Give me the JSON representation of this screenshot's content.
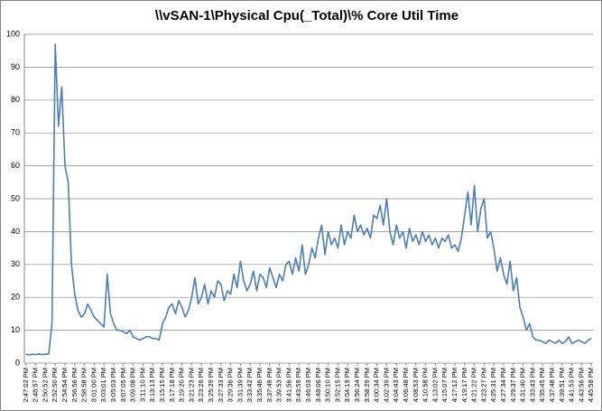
{
  "chart_data": {
    "type": "line",
    "title": "\\\\vSAN-1\\Physical Cpu(_Total)\\% Core Util Time",
    "categories": [
      "2:47:02 PM",
      null,
      null,
      "2:48:57 PM",
      null,
      null,
      "2:50:52 PM",
      null,
      null,
      "2:52:50 PM",
      null,
      null,
      "2:54:54 PM",
      null,
      null,
      "2:56:56 PM",
      null,
      null,
      "2:58:58 PM",
      null,
      null,
      "3:01:00 PM",
      null,
      null,
      "3:03:01 PM",
      null,
      null,
      "3:05:03 PM",
      null,
      null,
      "3:07:05 PM",
      null,
      null,
      "3:09:08 PM",
      null,
      null,
      "3:11:10 PM",
      null,
      null,
      "3:13:13 PM",
      null,
      null,
      "3:15:15 PM",
      null,
      null,
      "3:17:18 PM",
      null,
      null,
      "3:19:20 PM",
      null,
      null,
      "3:21:23 PM",
      null,
      null,
      "3:23:26 PM",
      null,
      null,
      "3:25:29 PM",
      null,
      null,
      "3:27:33 PM",
      null,
      null,
      "3:29:36 PM",
      null,
      null,
      "3:31:39 PM",
      null,
      null,
      "3:33:42 PM",
      null,
      null,
      "3:35:46 PM",
      null,
      null,
      "3:37:49 PM",
      null,
      null,
      "3:39:53 PM",
      null,
      null,
      "3:41:56 PM",
      null,
      null,
      "3:43:59 PM",
      null,
      null,
      "3:46:03 PM",
      null,
      null,
      "3:48:06 PM",
      null,
      null,
      "3:50:10 PM",
      null,
      null,
      "3:52:15 PM",
      null,
      null,
      "3:54:19 PM",
      null,
      null,
      "3:56:24 PM",
      null,
      null,
      "3:58:29 PM",
      null,
      null,
      "4:00:34 PM",
      null,
      null,
      "4:02:39 PM",
      null,
      null,
      "4:04:43 PM",
      null,
      null,
      "4:06:48 PM",
      null,
      null,
      "4:08:53 PM",
      null,
      null,
      "4:10:58 PM",
      null,
      null,
      "4:13:02 PM",
      null,
      null,
      "4:15:07 PM",
      null,
      null,
      "4:17:12 PM",
      null,
      null,
      "4:19:17 PM",
      null,
      null,
      "4:21:22 PM",
      null,
      null,
      "4:23:27 PM",
      null,
      null,
      "4:25:31 PM",
      null,
      null,
      "4:27:34 PM",
      null,
      null,
      "4:29:37 PM",
      null,
      null,
      "4:31:40 PM",
      null,
      null,
      "4:33:43 PM",
      null,
      null,
      "4:35:45 PM",
      null,
      null,
      "4:37:48 PM",
      null,
      null,
      "4:39:51 PM",
      null,
      null,
      "4:41:53 PM",
      null,
      null,
      "4:43:56 PM",
      null,
      null,
      "4:45:58 PM"
    ],
    "values": [
      2.7,
      2.5,
      2.7,
      2.6,
      2.8,
      2.6,
      2.7,
      2.8,
      12,
      97,
      72,
      84,
      60,
      55,
      30,
      21,
      16,
      14,
      15,
      18,
      16,
      14,
      13,
      12,
      11,
      27,
      15,
      12,
      10,
      10,
      9.5,
      9,
      10,
      8,
      7.5,
      7,
      7.5,
      8,
      8,
      7.5,
      7.5,
      7,
      12,
      14,
      17,
      18,
      15,
      19,
      17,
      14,
      16,
      20,
      26,
      18,
      20,
      24,
      18,
      22,
      20,
      25,
      24,
      19,
      22,
      21,
      27,
      23,
      31,
      25,
      22,
      24,
      28,
      22,
      27,
      26,
      23,
      29,
      26,
      23,
      27,
      25,
      30,
      31,
      27,
      32,
      28,
      36,
      27,
      30,
      35,
      32,
      38,
      42,
      33,
      40,
      36,
      38,
      35,
      42,
      36,
      40,
      38,
      45,
      40,
      42,
      39,
      41,
      38,
      45,
      44,
      48,
      42,
      50,
      40,
      36,
      42,
      38,
      40,
      35,
      41,
      37,
      39,
      36,
      40,
      37,
      39,
      36,
      38,
      35,
      38,
      37,
      39,
      35,
      36,
      34,
      38,
      45,
      52,
      42,
      54,
      40,
      47,
      50,
      38,
      40,
      35,
      28,
      32,
      27,
      24,
      31,
      22,
      26,
      17,
      14,
      10,
      12,
      8,
      7,
      7,
      6.5,
      6,
      7,
      6.5,
      6,
      7,
      6,
      6.5,
      8,
      6,
      6.5,
      7,
      6.5,
      6,
      7,
      7.5
    ],
    "color": "#4a7ebb",
    "ylim": [
      0,
      100
    ],
    "yticks": [
      0,
      10,
      20,
      30,
      40,
      50,
      60,
      70,
      80,
      90,
      100
    ],
    "grid": true
  }
}
